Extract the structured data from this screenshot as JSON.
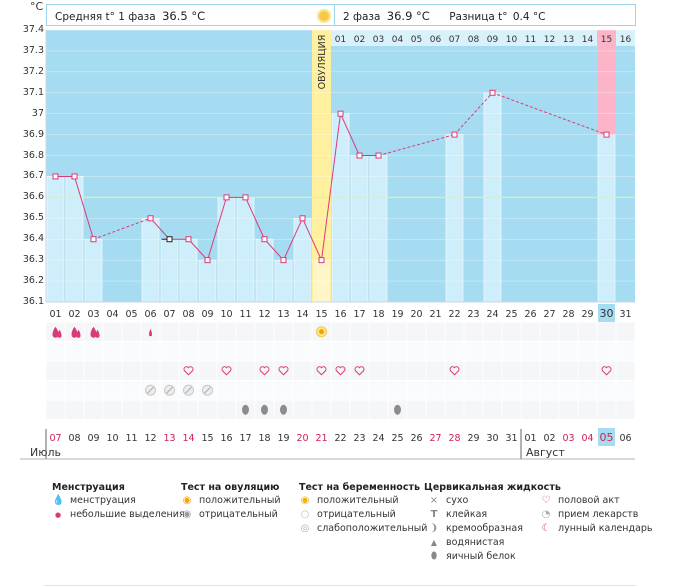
{
  "header": {
    "y_unit": "°C",
    "phase1_label": "Средняя t° 1 фаза",
    "phase1_value": "36.5 °C",
    "phase2_label": "2 фаза",
    "phase2_value": "36.9 °C",
    "diff_label": "Разница t°",
    "diff_value": "0.4 °C"
  },
  "chart_data": {
    "type": "line",
    "ylabel": "°C",
    "ylim": [
      36.1,
      37.4
    ],
    "yticks": [
      "36.1",
      "36.2",
      "36.3",
      "36.4",
      "36.5",
      "36.6",
      "36.7",
      "36.8",
      "36.9",
      "37",
      "37.1",
      "37.2",
      "37.3",
      "37.4"
    ],
    "coverline": 36.6,
    "ovulation_label": "ОВУЛЯЦИЯ",
    "ovulation_index": 14,
    "highlight_index": 29,
    "cycle_days": [
      "01",
      "02",
      "03",
      "04",
      "05",
      "06",
      "07",
      "08",
      "09",
      "10",
      "11",
      "12",
      "13",
      "14",
      "15",
      "16",
      "17",
      "18",
      "19",
      "20",
      "21",
      "22",
      "23",
      "24",
      "25",
      "26",
      "27",
      "28",
      "29",
      "30",
      "31"
    ],
    "phase2_days": [
      "01",
      "02",
      "03",
      "04",
      "05",
      "06",
      "07",
      "08",
      "09",
      "10",
      "11",
      "12",
      "13",
      "14",
      "15",
      "16"
    ],
    "temperatures": [
      36.7,
      36.7,
      36.4,
      null,
      null,
      36.5,
      36.4,
      36.4,
      36.3,
      36.6,
      36.6,
      36.4,
      36.3,
      36.5,
      36.3,
      37.0,
      36.8,
      36.8,
      null,
      null,
      null,
      36.9,
      null,
      37.1,
      null,
      null,
      null,
      null,
      null,
      36.9,
      null
    ],
    "dates": [
      "07",
      "08",
      "09",
      "10",
      "11",
      "12",
      "13",
      "14",
      "15",
      "16",
      "17",
      "18",
      "19",
      "20",
      "21",
      "22",
      "23",
      "24",
      "25",
      "26",
      "27",
      "28",
      "29",
      "30",
      "31",
      "01",
      "02",
      "03",
      "04",
      "05",
      "06"
    ],
    "red_date_indices": [
      0,
      6,
      7,
      13,
      14,
      20,
      21,
      27,
      28,
      29
    ],
    "highlight_date_index": 29,
    "month_labels": [
      {
        "label": "Июль",
        "index": 0
      },
      {
        "label": "Август",
        "index": 25
      }
    ],
    "markers": {
      "menstruation": [
        0,
        1,
        2
      ],
      "light_spotting": [
        5
      ],
      "ovulation_test_positive": [
        14
      ],
      "intercourse": [
        7,
        9,
        11,
        12,
        14,
        15,
        16,
        21,
        29
      ],
      "medication": [
        5,
        6,
        7,
        8
      ],
      "egg_white": [
        10,
        11,
        12,
        18
      ]
    }
  },
  "legend": {
    "menstruation": {
      "title": "Менструация",
      "items": [
        "менструация",
        "небольшие выделения"
      ]
    },
    "ovulation_test": {
      "title": "Тест на овуляцию",
      "items": [
        "положительный",
        "отрицательный"
      ]
    },
    "pregnancy_test": {
      "title": "Тест на беременность",
      "items": [
        "положительный",
        "отрицательный",
        "слабоположительный"
      ]
    },
    "cervical": {
      "title": "Цервикальная жидкость",
      "items": [
        "сухо",
        "клейкая",
        "кремообразная",
        "водянистая",
        "яичный белок"
      ]
    },
    "other": {
      "items": [
        "половой акт",
        "прием лекарств",
        "лунный календарь"
      ]
    }
  },
  "colors": {
    "sky": "#a6dcf2",
    "bar": "#cdeefa",
    "ovulation": "#fff0a0",
    "highlight": "#fcb5c8",
    "line": "#d93b7a",
    "red_text": "#cc2255",
    "grid": "#f0f4f8"
  }
}
